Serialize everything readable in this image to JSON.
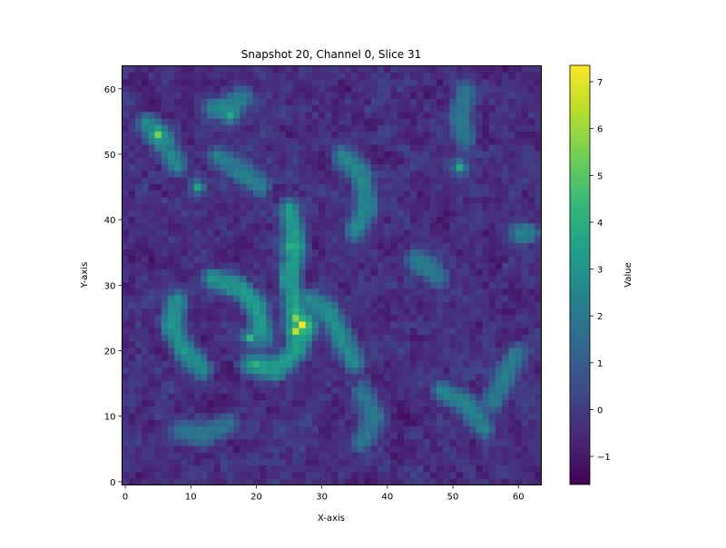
{
  "chart_data": {
    "type": "heatmap",
    "title": "Snapshot 20, Channel 0, Slice 31",
    "xlabel": "X-axis",
    "ylabel": "Y-axis",
    "grid_size": [
      64,
      64
    ],
    "xlim": [
      -0.5,
      63.5
    ],
    "ylim": [
      -0.5,
      63.5
    ],
    "xticks": [
      0,
      10,
      20,
      30,
      40,
      50,
      60
    ],
    "yticks": [
      0,
      10,
      20,
      30,
      40,
      50,
      60
    ],
    "colormap": "viridis",
    "value_range": [
      -1.6,
      7.35
    ],
    "colorbar": {
      "label": "Value",
      "ticks": [
        -1,
        0,
        1,
        2,
        3,
        4,
        5,
        6,
        7
      ]
    },
    "noise_range": [
      -1.6,
      0.9
    ],
    "background_value": -0.55,
    "hotspots": [
      {
        "x": 27,
        "y": 24,
        "value": 7.3
      },
      {
        "x": 26,
        "y": 23,
        "value": 6.5
      },
      {
        "x": 26,
        "y": 25,
        "value": 5.6
      },
      {
        "x": 5,
        "y": 53,
        "value": 5.4
      },
      {
        "x": 19,
        "y": 22,
        "value": 4.4
      },
      {
        "x": 20,
        "y": 18,
        "value": 4.2
      },
      {
        "x": 25,
        "y": 36,
        "value": 4.0
      },
      {
        "x": 51,
        "y": 48,
        "value": 3.8
      },
      {
        "x": 11,
        "y": 45,
        "value": 3.6
      },
      {
        "x": 16,
        "y": 56,
        "value": 3.7
      }
    ],
    "ridges": [
      {
        "points": [
          [
            8,
            28
          ],
          [
            7,
            24
          ],
          [
            9,
            20
          ],
          [
            12,
            17
          ]
        ],
        "value": 3.0
      },
      {
        "points": [
          [
            13,
            31
          ],
          [
            17,
            30
          ],
          [
            20,
            27
          ],
          [
            21,
            22
          ]
        ],
        "value": 3.2
      },
      {
        "points": [
          [
            19,
            18
          ],
          [
            23,
            17
          ],
          [
            26,
            20
          ],
          [
            28,
            24
          ]
        ],
        "value": 3.3
      },
      {
        "points": [
          [
            25,
            42
          ],
          [
            26,
            36
          ],
          [
            25,
            31
          ],
          [
            26,
            26
          ]
        ],
        "value": 3.4
      },
      {
        "points": [
          [
            28,
            28
          ],
          [
            31,
            26
          ],
          [
            33,
            22
          ],
          [
            35,
            18
          ]
        ],
        "value": 2.8
      },
      {
        "points": [
          [
            33,
            50
          ],
          [
            36,
            47
          ],
          [
            37,
            42
          ],
          [
            35,
            38
          ]
        ],
        "value": 2.6
      },
      {
        "points": [
          [
            3,
            55
          ],
          [
            6,
            52
          ],
          [
            8,
            48
          ]
        ],
        "value": 2.5
      },
      {
        "points": [
          [
            14,
            50
          ],
          [
            18,
            47
          ],
          [
            21,
            45
          ]
        ],
        "value": 2.3
      },
      {
        "points": [
          [
            48,
            14
          ],
          [
            52,
            12
          ],
          [
            55,
            8
          ]
        ],
        "value": 2.4
      },
      {
        "points": [
          [
            56,
            12
          ],
          [
            58,
            16
          ],
          [
            60,
            20
          ]
        ],
        "value": 2.2
      },
      {
        "points": [
          [
            52,
            60
          ],
          [
            51,
            56
          ],
          [
            52,
            52
          ]
        ],
        "value": 2.0
      },
      {
        "points": [
          [
            60,
            38
          ],
          [
            62,
            38
          ]
        ],
        "value": 2.6
      },
      {
        "points": [
          [
            36,
            14
          ],
          [
            38,
            10
          ],
          [
            36,
            6
          ]
        ],
        "value": 2.0
      },
      {
        "points": [
          [
            8,
            8
          ],
          [
            12,
            7
          ],
          [
            16,
            9
          ]
        ],
        "value": 1.9
      },
      {
        "points": [
          [
            44,
            34
          ],
          [
            46,
            33
          ],
          [
            48,
            31
          ]
        ],
        "value": 2.1
      },
      {
        "points": [
          [
            13,
            57
          ],
          [
            16,
            57
          ],
          [
            18,
            59
          ]
        ],
        "value": 2.5
      }
    ]
  }
}
